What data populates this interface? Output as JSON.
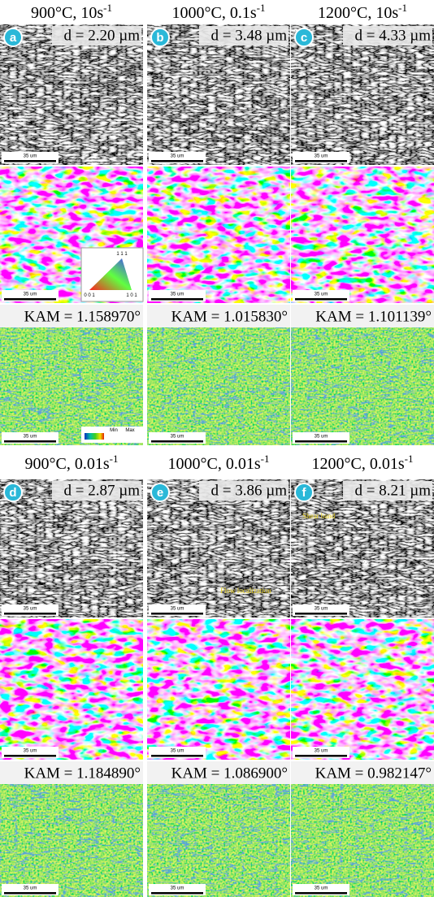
{
  "panels": [
    {
      "title": {
        "text": "900°C, 10s",
        "superscript": "-1"
      },
      "label": "a",
      "grain_size": "d = 2.20 µm",
      "kam": "KAM = 1.158970°",
      "scale_bar": "35 um"
    },
    {
      "title": {
        "text": "1000°C, 0.1s",
        "superscript": "-1"
      },
      "label": "b",
      "grain_size": "d = 3.48 µm",
      "kam": "KAM = 1.015830°",
      "scale_bar": "35 um"
    },
    {
      "title": {
        "text": "1200°C, 10s",
        "superscript": "-1"
      },
      "label": "c",
      "grain_size": "d = 4.33 µm",
      "kam": "KAM = 1.101139°",
      "scale_bar": "35 um"
    },
    {
      "title": {
        "text": "900°C, 0.01s",
        "superscript": "-1"
      },
      "label": "d",
      "grain_size": "d = 2.87 µm",
      "kam": "KAM = 1.184890°",
      "scale_bar": "35 um"
    },
    {
      "title": {
        "text": "1000°C, 0.01s",
        "superscript": "-1"
      },
      "label": "e",
      "grain_size": "d = 3.86 µm",
      "kam": "KAM = 1.086900°",
      "scale_bar": "35 um",
      "annotation": "Flow localization"
    },
    {
      "title": {
        "text": "1200°C, 0.01s",
        "superscript": "-1"
      },
      "label": "f",
      "grain_size": "d = 8.21 µm",
      "kam": "KAM = 0.982147°",
      "scale_bar": "35 um",
      "annotation": "Shear band"
    }
  ],
  "ipf_legend": [
    "1 1 1",
    "0 0 1",
    "1 0 1"
  ],
  "kam_legend": [
    "Min",
    "Max"
  ]
}
